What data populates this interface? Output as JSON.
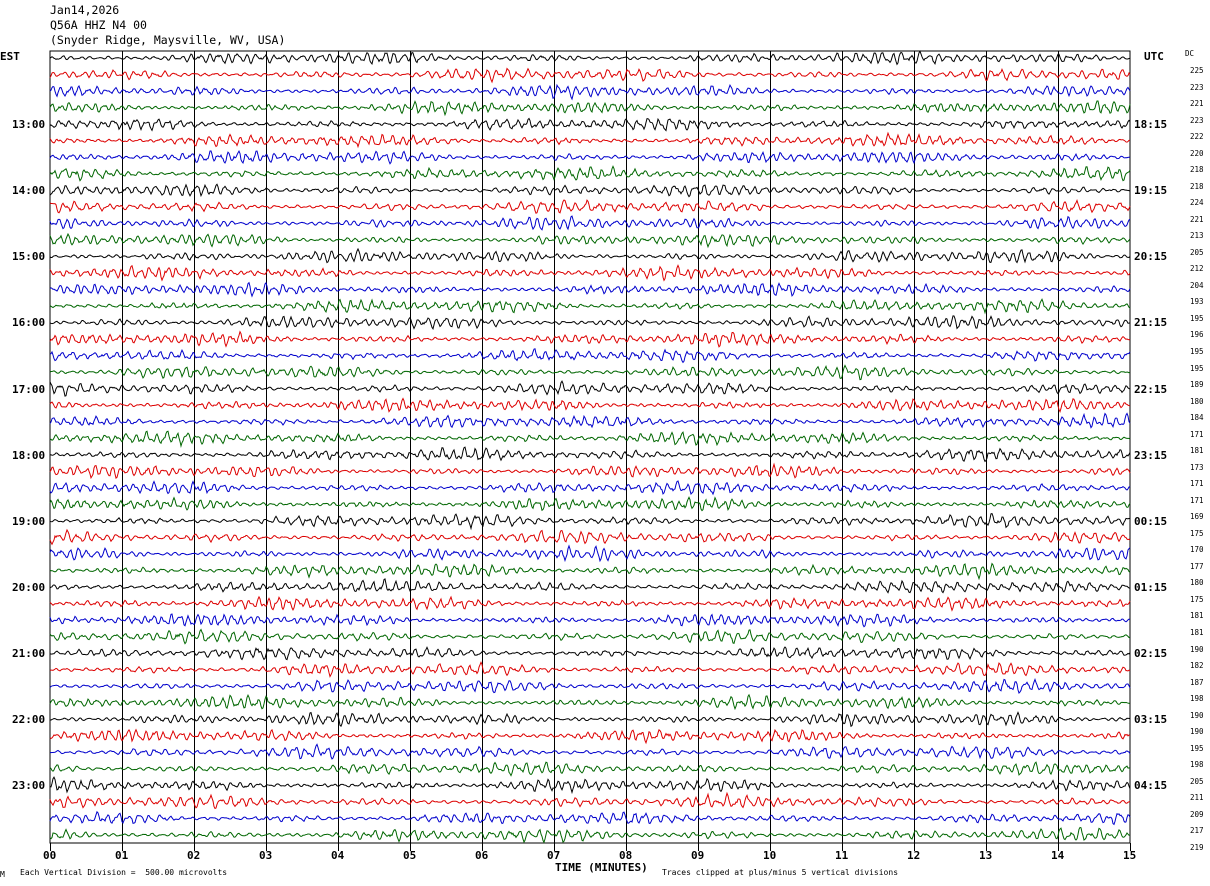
{
  "header": {
    "date": "Jan14,2026",
    "station": "Q56A HHZ N4 00",
    "location": "(Snyder Ridge, Maysville, WV, USA)"
  },
  "left_axis_label": "EST",
  "right_axis_label": "UTC",
  "dc_label": "DC",
  "left_hours": [
    "13:00",
    "14:00",
    "15:00",
    "16:00",
    "17:00",
    "18:00",
    "19:00",
    "20:00",
    "21:00",
    "22:00",
    "23:00"
  ],
  "right_hours": [
    "18:15",
    "19:15",
    "20:15",
    "21:15",
    "22:15",
    "23:15",
    "00:15",
    "01:15",
    "02:15",
    "03:15",
    "04:15"
  ],
  "footer": {
    "left_mark": "M",
    "scale_note": "Each Vertical Division =  500.00 microvolts",
    "xlabel": "TIME (MINUTES)",
    "clip_note": "Traces clipped at plus/minus 5 vertical divisions"
  },
  "colors": {
    "trace_cycle": [
      "#000000",
      "#dd0000",
      "#0000cc",
      "#006600"
    ],
    "grid": "#000000"
  },
  "chart_data": {
    "type": "line",
    "subtype": "helicorder",
    "xlabel": "TIME (MINUTES)",
    "xlim": [
      0,
      15
    ],
    "x_ticks": [
      "00",
      "01",
      "02",
      "03",
      "04",
      "05",
      "06",
      "07",
      "08",
      "09",
      "10",
      "11",
      "12",
      "13",
      "14",
      "15"
    ],
    "trace_count": 48,
    "minutes_per_trace": 15,
    "dc_offsets": [
      225,
      223,
      221,
      223,
      222,
      220,
      218,
      218,
      224,
      221,
      213,
      205,
      212,
      204,
      193,
      195,
      196,
      195,
      195,
      189,
      180,
      184,
      171,
      181,
      173,
      171,
      171,
      169,
      175,
      170,
      177,
      180,
      175,
      181,
      181,
      190,
      182,
      187,
      198,
      190,
      190,
      195,
      198,
      205,
      211,
      209,
      217,
      219
    ]
  }
}
